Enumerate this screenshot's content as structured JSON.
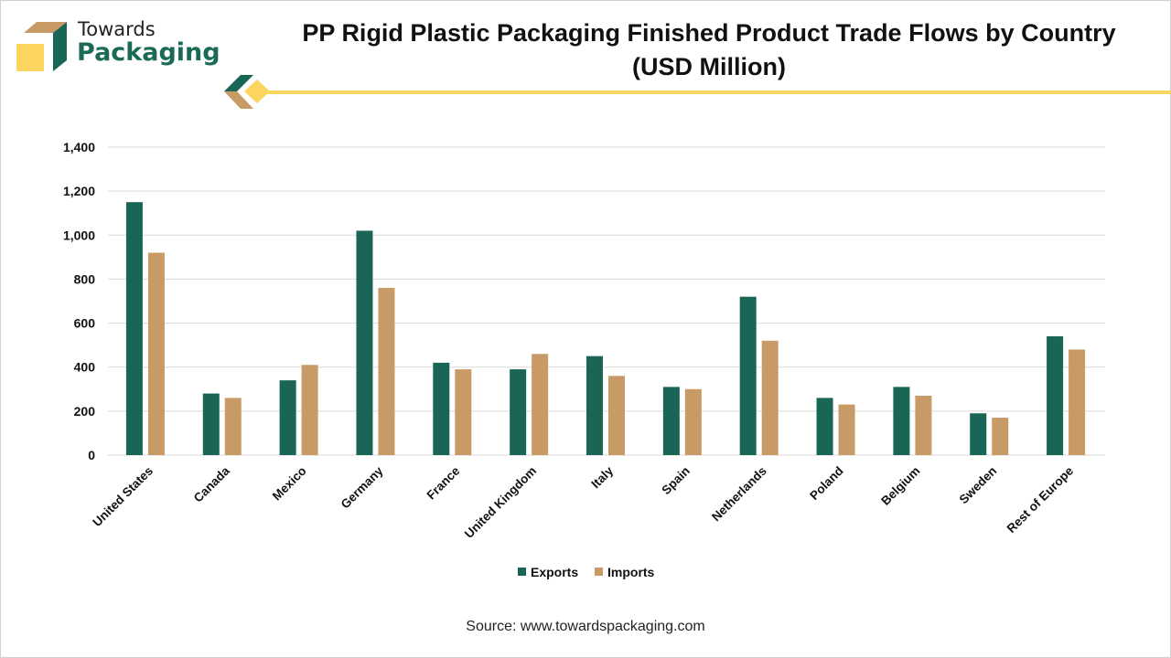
{
  "brand": {
    "line1": "Towards",
    "line2": "Packaging"
  },
  "title_line1": "PP Rigid Plastic Packaging Finished Product Trade Flows by Country",
  "title_line2": "(USD Million)",
  "source": "Source: www.towardspackaging.com",
  "colors": {
    "exports": "#1a6656",
    "imports": "#c89a66",
    "accent": "#f5d65e"
  },
  "chart_data": {
    "type": "bar",
    "title": "PP Rigid Plastic Packaging Finished Product Trade Flows by Country (USD Million)",
    "categories": [
      "United States",
      "Canada",
      "Mexico",
      "Germany",
      "France",
      "United Kingdom",
      "Italy",
      "Spain",
      "Netherlands",
      "Poland",
      "Belgium",
      "Sweden",
      "Rest of Europe"
    ],
    "series": [
      {
        "name": "Exports",
        "values": [
          1150,
          280,
          340,
          1020,
          420,
          390,
          450,
          310,
          720,
          260,
          310,
          190,
          540
        ]
      },
      {
        "name": "Imports",
        "values": [
          920,
          260,
          410,
          760,
          390,
          460,
          360,
          300,
          520,
          230,
          270,
          170,
          480
        ]
      }
    ],
    "ylim": [
      0,
      1400
    ],
    "yticks": [
      "0",
      "200",
      "400",
      "600",
      "800",
      "1,000",
      "1,200",
      "1,400"
    ],
    "grid": true,
    "legend": "bottom"
  }
}
